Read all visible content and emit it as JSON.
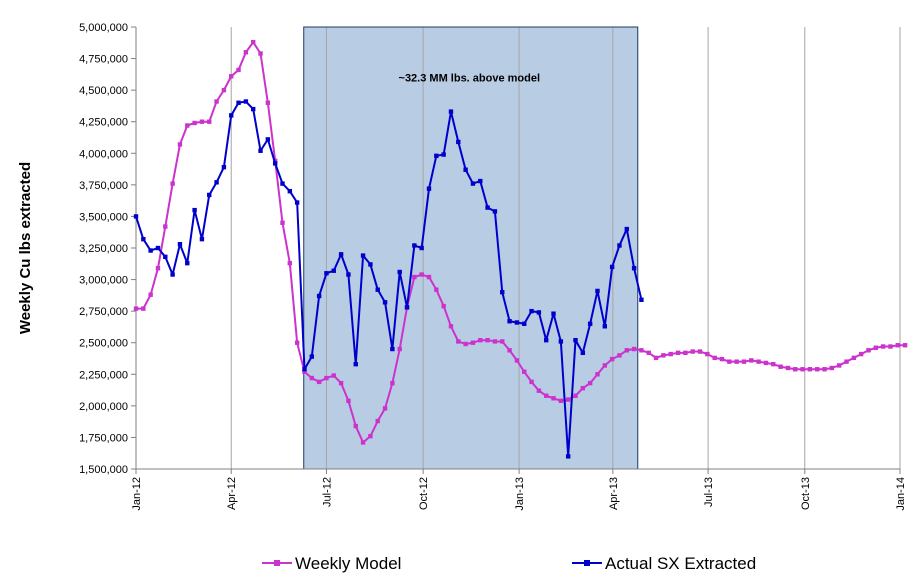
{
  "chart_data": {
    "type": "line",
    "title": "",
    "xlabel": "",
    "ylabel": "Weekly Cu lbs extracted",
    "ylim": [
      1500000,
      5000000
    ],
    "ystep": 250000,
    "y_tick_labels": [
      "1,500,000",
      "1,750,000",
      "2,000,000",
      "2,250,000",
      "2,500,000",
      "2,750,000",
      "3,000,000",
      "3,250,000",
      "3,500,000",
      "3,750,000",
      "4,000,000",
      "4,250,000",
      "4,500,000",
      "4,750,000",
      "5,000,000"
    ],
    "x_unit": "weeks since Jan-12",
    "xlim": [
      0,
      104.3
    ],
    "x_ticks": [
      {
        "label": "Jan-12",
        "x": 0
      },
      {
        "label": "Apr-12",
        "x": 13
      },
      {
        "label": "Jul-12",
        "x": 26
      },
      {
        "label": "Oct-12",
        "x": 39.2
      },
      {
        "label": "Jan-13",
        "x": 52.3
      },
      {
        "label": "Apr-13",
        "x": 65.1
      },
      {
        "label": "Jul-13",
        "x": 78.1
      },
      {
        "label": "Oct-13",
        "x": 91.3
      },
      {
        "label": "Jan-14",
        "x": 104.3
      }
    ],
    "grid": "vertical",
    "shaded_region": {
      "x_start": 22.9,
      "x_end": 68.5,
      "color": "#b8cce4"
    },
    "annotation": {
      "text": "~32.3 MM lbs. above model",
      "x": 45.5,
      "y": 4600000
    },
    "legend_position": "bottom",
    "series": [
      {
        "name": "Weekly Model",
        "color": "#cc33cc",
        "values": [
          2770000,
          2770000,
          2880000,
          3090000,
          3420000,
          3760000,
          4070000,
          4220000,
          4240000,
          4250000,
          4250000,
          4410000,
          4500000,
          4610000,
          4660000,
          4800000,
          4880000,
          4790000,
          4400000,
          3940000,
          3450000,
          3130000,
          2500000,
          2270000,
          2220000,
          2190000,
          2220000,
          2240000,
          2180000,
          2040000,
          1840000,
          1710000,
          1760000,
          1880000,
          1980000,
          2180000,
          2450000,
          2780000,
          3020000,
          3040000,
          3020000,
          2920000,
          2790000,
          2630000,
          2510000,
          2490000,
          2500000,
          2520000,
          2520000,
          2510000,
          2510000,
          2440000,
          2360000,
          2270000,
          2190000,
          2120000,
          2080000,
          2060000,
          2040000,
          2050000,
          2080000,
          2140000,
          2180000,
          2250000,
          2320000,
          2370000,
          2400000,
          2440000,
          2450000,
          2440000,
          2420000,
          2380000,
          2400000,
          2410000,
          2420000,
          2420000,
          2430000,
          2430000,
          2410000,
          2380000,
          2370000,
          2350000,
          2350000,
          2350000,
          2360000,
          2350000,
          2340000,
          2330000,
          2310000,
          2300000,
          2290000,
          2290000,
          2290000,
          2290000,
          2290000,
          2300000,
          2320000,
          2350000,
          2380000,
          2410000,
          2440000,
          2460000,
          2470000,
          2470000,
          2480000,
          2480000
        ]
      },
      {
        "name": "Actual SX Extracted",
        "color": "#0000cc",
        "values": [
          3500000,
          3320000,
          3230000,
          3250000,
          3180000,
          3040000,
          3280000,
          3130000,
          3550000,
          3320000,
          3670000,
          3770000,
          3890000,
          4300000,
          4400000,
          4410000,
          4350000,
          4020000,
          4110000,
          3920000,
          3760000,
          3700000,
          3610000,
          2290000,
          2390000,
          2870000,
          3050000,
          3070000,
          3200000,
          3040000,
          2330000,
          3190000,
          3120000,
          2920000,
          2820000,
          2450000,
          3060000,
          2780000,
          3270000,
          3250000,
          3720000,
          3980000,
          3990000,
          4330000,
          4090000,
          3870000,
          3760000,
          3780000,
          3570000,
          3540000,
          2900000,
          2670000,
          2660000,
          2650000,
          2750000,
          2740000,
          2520000,
          2730000,
          2510000,
          1600000,
          2520000,
          2420000,
          2650000,
          2910000,
          2630000,
          3100000,
          3270000,
          3400000,
          3090000,
          2840000
        ]
      }
    ]
  }
}
